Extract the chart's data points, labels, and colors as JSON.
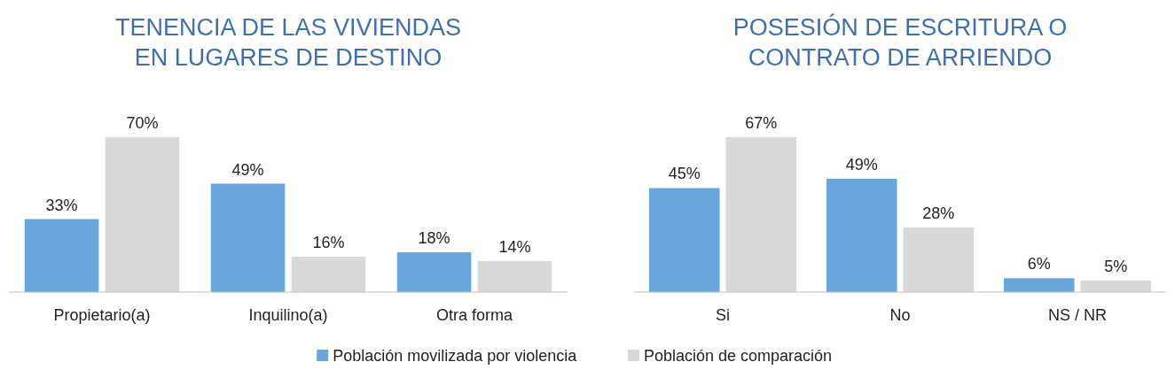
{
  "chart_data": [
    {
      "type": "bar",
      "title": "TENENCIA DE LAS VIVIENDAS\nEN LUGARES DE DESTINO",
      "categories": [
        "Propietario(a)",
        "Inquilino(a)",
        "Otra forma"
      ],
      "series": [
        {
          "name": "Población movilizada por violencia",
          "color": "#6aa5db",
          "values": [
            33,
            49,
            18
          ],
          "value_labels": [
            "33%",
            "49%",
            "18%"
          ]
        },
        {
          "name": "Población de comparación",
          "color": "#d9d9d9",
          "values": [
            70,
            16,
            14
          ],
          "value_labels": [
            "70%",
            "16%",
            "14%"
          ]
        }
      ],
      "legend": "bottom"
    },
    {
      "type": "bar",
      "title": "POSESIÓN DE ESCRITURA O\nCONTRATO DE ARRIENDO",
      "categories": [
        "Si",
        "No",
        "NS / NR"
      ],
      "series": [
        {
          "color": "#6aa5db",
          "values": [
            45,
            49,
            6
          ],
          "value_labels": [
            "45%",
            "49%",
            "6%"
          ]
        },
        {
          "color": "#d9d9d9",
          "values": [
            67,
            28,
            5
          ],
          "value_labels": [
            "67%",
            "28%",
            "5%"
          ]
        }
      ]
    }
  ]
}
